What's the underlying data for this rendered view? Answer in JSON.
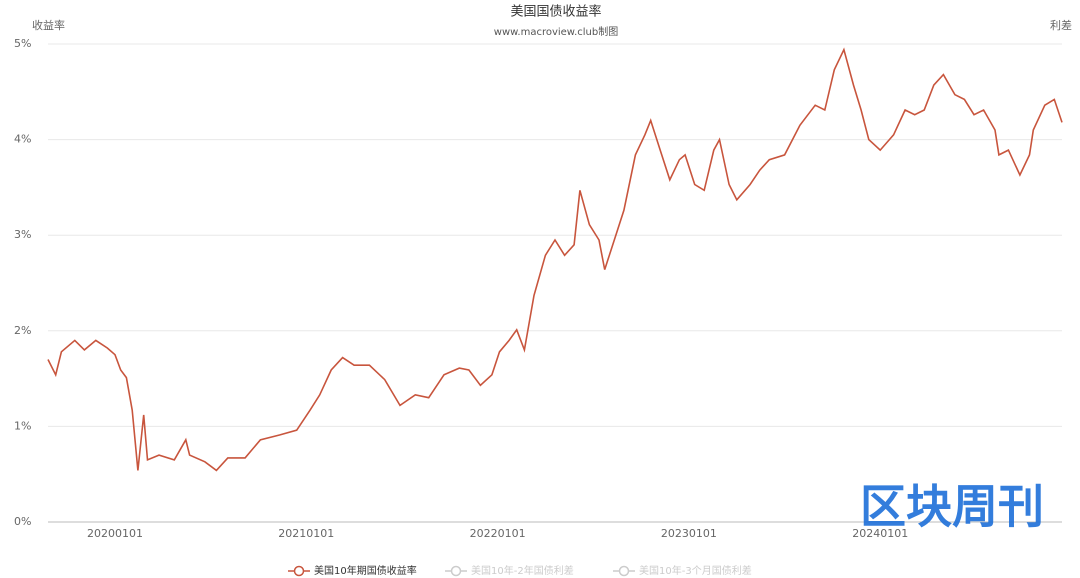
{
  "chart_data": {
    "type": "line",
    "title": "美国国债收益率",
    "subtitle": "www.macroview.club制图",
    "y_label": "收益率",
    "y2_label": "利差",
    "watermark": "区块周刊",
    "x": [
      2019.65,
      2019.69,
      2019.72,
      2019.79,
      2019.84,
      2019.9,
      2019.96,
      2020.0,
      2020.03,
      2020.06,
      2020.09,
      2020.12,
      2020.15,
      2020.17,
      2020.23,
      2020.31,
      2020.37,
      2020.39,
      2020.47,
      2020.53,
      2020.59,
      2020.68,
      2020.76,
      2020.86,
      2020.95,
      2021.02,
      2021.07,
      2021.13,
      2021.19,
      2021.25,
      2021.33,
      2021.41,
      2021.49,
      2021.57,
      2021.64,
      2021.72,
      2021.8,
      2021.85,
      2021.91,
      2021.97,
      2022.01,
      2022.06,
      2022.1,
      2022.14,
      2022.19,
      2022.25,
      2022.3,
      2022.35,
      2022.4,
      2022.43,
      2022.48,
      2022.53,
      2022.56,
      2022.61,
      2022.66,
      2022.72,
      2022.77,
      2022.8,
      2022.85,
      2022.9,
      2022.95,
      2022.98,
      2023.03,
      2023.08,
      2023.13,
      2023.16,
      2023.21,
      2023.25,
      2023.32,
      2023.37,
      2023.42,
      2023.5,
      2023.58,
      2023.66,
      2023.71,
      2023.76,
      2023.81,
      2023.86,
      2023.9,
      2023.94,
      2024.0,
      2024.07,
      2024.13,
      2024.18,
      2024.23,
      2024.28,
      2024.33,
      2024.39,
      2024.44,
      2024.49,
      2024.54,
      2024.6,
      2024.62,
      2024.67,
      2024.73,
      2024.78,
      2024.8,
      2024.86,
      2024.91,
      2024.95
    ],
    "series": [
      {
        "name": "美国10年期国债收益率",
        "color": "#c8553d",
        "values": [
          1.7,
          1.54,
          1.78,
          1.9,
          1.8,
          1.9,
          1.82,
          1.75,
          1.59,
          1.51,
          1.17,
          0.54,
          1.12,
          0.65,
          0.7,
          0.65,
          0.86,
          0.7,
          0.63,
          0.54,
          0.67,
          0.67,
          0.86,
          0.91,
          0.96,
          1.17,
          1.33,
          1.59,
          1.72,
          1.64,
          1.64,
          1.49,
          1.22,
          1.33,
          1.3,
          1.54,
          1.61,
          1.59,
          1.43,
          1.54,
          1.78,
          1.9,
          2.01,
          1.8,
          2.37,
          2.79,
          2.95,
          2.79,
          2.9,
          3.47,
          3.11,
          2.95,
          2.64,
          2.95,
          3.26,
          3.84,
          4.05,
          4.2,
          3.89,
          3.58,
          3.79,
          3.84,
          3.53,
          3.47,
          3.89,
          4.0,
          3.53,
          3.37,
          3.53,
          3.68,
          3.79,
          3.84,
          4.15,
          4.36,
          4.31,
          4.73,
          4.94,
          4.57,
          4.31,
          4.0,
          3.89,
          4.05,
          4.31,
          4.26,
          4.31,
          4.57,
          4.68,
          4.47,
          4.42,
          4.26,
          4.31,
          4.1,
          3.84,
          3.89,
          3.63,
          3.84,
          4.1,
          4.36,
          4.42,
          4.18
        ]
      }
    ],
    "legend": [
      {
        "name": "美国10年期国债收益率",
        "color": "#c8553d",
        "active": true
      },
      {
        "name": "美国10年-2年国债利差",
        "color": "#cccccc",
        "active": false
      },
      {
        "name": "美国10年-3个月国债利差",
        "color": "#cccccc",
        "active": false
      }
    ],
    "xlim": [
      2019.65,
      2024.95
    ],
    "xticks": [
      {
        "value": 2020,
        "label": "20200101"
      },
      {
        "value": 2021,
        "label": "20210101"
      },
      {
        "value": 2022,
        "label": "20220101"
      },
      {
        "value": 2023,
        "label": "20230101"
      },
      {
        "value": 2024,
        "label": "20240101"
      }
    ],
    "ylim": [
      0,
      5
    ],
    "yticks": [
      {
        "value": 0,
        "label": "0%"
      },
      {
        "value": 1,
        "label": "1%"
      },
      {
        "value": 2,
        "label": "2%"
      },
      {
        "value": 3,
        "label": "3%"
      },
      {
        "value": 4,
        "label": "4%"
      },
      {
        "value": 5,
        "label": "5%"
      }
    ],
    "grid": true
  }
}
